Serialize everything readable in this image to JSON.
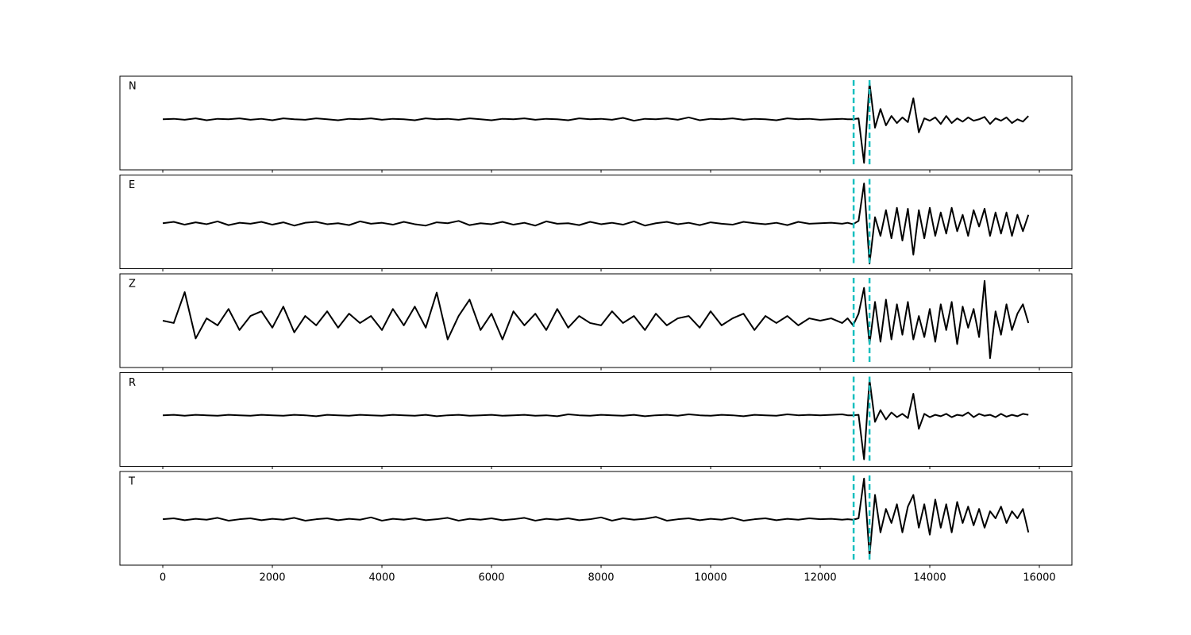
{
  "chart_data": {
    "type": "line",
    "x": [
      0,
      200,
      400,
      600,
      800,
      1000,
      1200,
      1400,
      1600,
      1800,
      2000,
      2200,
      2400,
      2600,
      2800,
      3000,
      3200,
      3400,
      3600,
      3800,
      4000,
      4200,
      4400,
      4600,
      4800,
      5000,
      5200,
      5400,
      5600,
      5800,
      6000,
      6200,
      6400,
      6600,
      6800,
      7000,
      7200,
      7400,
      7600,
      7800,
      8000,
      8200,
      8400,
      8600,
      8800,
      9000,
      9200,
      9400,
      9600,
      9800,
      10000,
      10200,
      10400,
      10600,
      10800,
      11000,
      11200,
      11400,
      11600,
      11800,
      12000,
      12200,
      12400,
      12500,
      12600,
      12700,
      12800,
      12900,
      13000,
      13100,
      13200,
      13300,
      13400,
      13500,
      13600,
      13700,
      13800,
      13900,
      14000,
      14100,
      14200,
      14300,
      14400,
      14500,
      14600,
      14700,
      14800,
      14900,
      15000,
      15100,
      15200,
      15300,
      15400,
      15500,
      15600,
      15700,
      15800
    ],
    "series": [
      {
        "name": "N",
        "color": "#000000",
        "values": [
          0.08,
          0.09,
          0.07,
          0.1,
          0.06,
          0.09,
          0.08,
          0.1,
          0.07,
          0.09,
          0.06,
          0.1,
          0.08,
          0.07,
          0.1,
          0.08,
          0.06,
          0.09,
          0.08,
          0.1,
          0.07,
          0.09,
          0.08,
          0.06,
          0.1,
          0.08,
          0.09,
          0.07,
          0.1,
          0.08,
          0.06,
          0.09,
          0.08,
          0.1,
          0.07,
          0.09,
          0.08,
          0.06,
          0.1,
          0.08,
          0.09,
          0.07,
          0.11,
          0.05,
          0.09,
          0.08,
          0.1,
          0.07,
          0.12,
          0.06,
          0.09,
          0.08,
          0.1,
          0.07,
          0.09,
          0.08,
          0.06,
          0.1,
          0.08,
          0.09,
          0.07,
          0.08,
          0.09,
          0.08,
          0.08,
          0.1,
          -0.85,
          0.86,
          -0.1,
          0.3,
          -0.05,
          0.15,
          0.0,
          0.12,
          0.02,
          0.53,
          -0.2,
          0.1,
          0.05,
          0.12,
          -0.02,
          0.15,
          0.0,
          0.1,
          0.03,
          0.12,
          0.05,
          0.08,
          0.13,
          -0.02,
          0.1,
          0.05,
          0.12,
          0.0,
          0.08,
          0.03,
          0.15
        ]
      },
      {
        "name": "E",
        "color": "#000000",
        "values": [
          -0.03,
          0,
          -0.06,
          -0.01,
          -0.05,
          0.01,
          -0.07,
          -0.02,
          -0.04,
          0,
          -0.06,
          -0.01,
          -0.08,
          -0.02,
          0,
          -0.05,
          -0.03,
          -0.07,
          0.01,
          -0.04,
          -0.02,
          -0.06,
          0,
          -0.05,
          -0.08,
          -0.01,
          -0.03,
          0.02,
          -0.07,
          -0.03,
          -0.05,
          0,
          -0.06,
          -0.02,
          -0.08,
          0.01,
          -0.04,
          -0.03,
          -0.07,
          0,
          -0.05,
          -0.02,
          -0.06,
          0.01,
          -0.08,
          -0.03,
          0,
          -0.05,
          -0.02,
          -0.07,
          -0.01,
          -0.04,
          -0.06,
          0,
          -0.03,
          -0.05,
          -0.02,
          -0.07,
          0,
          -0.04,
          -0.03,
          -0.02,
          -0.04,
          -0.02,
          -0.05,
          0.02,
          0.82,
          -0.89,
          0.1,
          -0.3,
          0.25,
          -0.35,
          0.3,
          -0.4,
          0.28,
          -0.7,
          0.25,
          -0.35,
          0.3,
          -0.3,
          0.2,
          -0.25,
          0.3,
          -0.2,
          0.15,
          -0.3,
          0.25,
          -0.1,
          0.28,
          -0.3,
          0.2,
          -0.25,
          0.2,
          -0.3,
          0.15,
          -0.2,
          0.15
        ]
      },
      {
        "name": "Z",
        "color": "#000000",
        "values": [
          0,
          -0.05,
          0.61,
          -0.38,
          0.05,
          -0.1,
          0.25,
          -0.2,
          0.1,
          0.2,
          -0.15,
          0.3,
          -0.25,
          0.1,
          -0.1,
          0.2,
          -0.15,
          0.15,
          -0.05,
          0.1,
          -0.2,
          0.25,
          -0.1,
          0.3,
          -0.15,
          0.6,
          -0.4,
          0.1,
          0.45,
          -0.2,
          0.15,
          -0.4,
          0.2,
          -0.1,
          0.15,
          -0.2,
          0.25,
          -0.15,
          0.1,
          -0.05,
          -0.1,
          0.2,
          -0.05,
          0.1,
          -0.2,
          0.15,
          -0.1,
          0.05,
          0.1,
          -0.15,
          0.2,
          -0.1,
          0.05,
          0.15,
          -0.2,
          0.1,
          -0.05,
          0.1,
          -0.1,
          0.05,
          0,
          0.05,
          -0.05,
          0.05,
          -0.1,
          0.15,
          0.7,
          -0.5,
          0.4,
          -0.45,
          0.45,
          -0.4,
          0.35,
          -0.3,
          0.4,
          -0.4,
          0.1,
          -0.35,
          0.25,
          -0.45,
          0.35,
          -0.2,
          0.4,
          -0.5,
          0.3,
          -0.15,
          0.25,
          -0.35,
          0.85,
          -0.8,
          0.2,
          -0.3,
          0.35,
          -0.2,
          0.15,
          0.35,
          -0.05
        ]
      },
      {
        "name": "R",
        "color": "#000000",
        "values": [
          0.09,
          0.1,
          0.08,
          0.1,
          0.09,
          0.08,
          0.1,
          0.09,
          0.08,
          0.1,
          0.09,
          0.08,
          0.1,
          0.09,
          0.07,
          0.1,
          0.09,
          0.08,
          0.1,
          0.09,
          0.08,
          0.1,
          0.09,
          0.08,
          0.1,
          0.07,
          0.09,
          0.1,
          0.08,
          0.09,
          0.1,
          0.08,
          0.09,
          0.1,
          0.08,
          0.09,
          0.07,
          0.11,
          0.09,
          0.08,
          0.1,
          0.09,
          0.08,
          0.1,
          0.07,
          0.09,
          0.1,
          0.08,
          0.11,
          0.09,
          0.08,
          0.1,
          0.09,
          0.07,
          0.1,
          0.09,
          0.08,
          0.11,
          0.09,
          0.1,
          0.09,
          0.1,
          0.11,
          0.09,
          0.09,
          0.1,
          -0.85,
          0.85,
          -0.05,
          0.2,
          0.0,
          0.15,
          0.05,
          0.12,
          0.03,
          0.55,
          -0.2,
          0.12,
          0.05,
          0.1,
          0.07,
          0.12,
          0.05,
          0.1,
          0.08,
          0.15,
          0.05,
          0.12,
          0.08,
          0.1,
          0.05,
          0.12,
          0.06,
          0.1,
          0.07,
          0.12,
          0.1
        ]
      },
      {
        "name": "T",
        "color": "#000000",
        "values": [
          -0.02,
          0,
          -0.04,
          -0.01,
          -0.03,
          0.01,
          -0.05,
          -0.02,
          0,
          -0.04,
          -0.01,
          -0.03,
          0.01,
          -0.05,
          -0.02,
          0,
          -0.04,
          -0.01,
          -0.03,
          0.02,
          -0.05,
          -0.01,
          -0.03,
          0,
          -0.04,
          -0.02,
          0.01,
          -0.05,
          -0.01,
          -0.03,
          0,
          -0.04,
          -0.02,
          0.01,
          -0.05,
          -0.01,
          -0.03,
          0,
          -0.04,
          -0.02,
          0.02,
          -0.05,
          0,
          -0.03,
          -0.01,
          0.03,
          -0.05,
          -0.02,
          0,
          -0.04,
          -0.01,
          -0.03,
          0.01,
          -0.05,
          -0.02,
          0,
          -0.04,
          -0.01,
          -0.03,
          0,
          -0.02,
          -0.01,
          -0.03,
          -0.02,
          -0.03,
          0.0,
          0.85,
          -0.8,
          0.5,
          -0.3,
          0.2,
          -0.1,
          0.3,
          -0.3,
          0.25,
          0.5,
          -0.2,
          0.3,
          -0.35,
          0.4,
          -0.2,
          0.3,
          -0.3,
          0.35,
          -0.1,
          0.25,
          -0.15,
          0.2,
          -0.2,
          0.15,
          0.0,
          0.25,
          -0.1,
          0.15,
          0.0,
          0.2,
          -0.3
        ]
      }
    ],
    "xlim": [
      -783,
      16594
    ],
    "xticks": [
      0,
      2000,
      4000,
      6000,
      8000,
      10000,
      12000,
      14000,
      16000
    ],
    "ylim": [
      -1,
      1
    ],
    "vlines": [
      12610,
      12900
    ],
    "vline_color": "#17bfbf",
    "vline_dashed": true
  }
}
